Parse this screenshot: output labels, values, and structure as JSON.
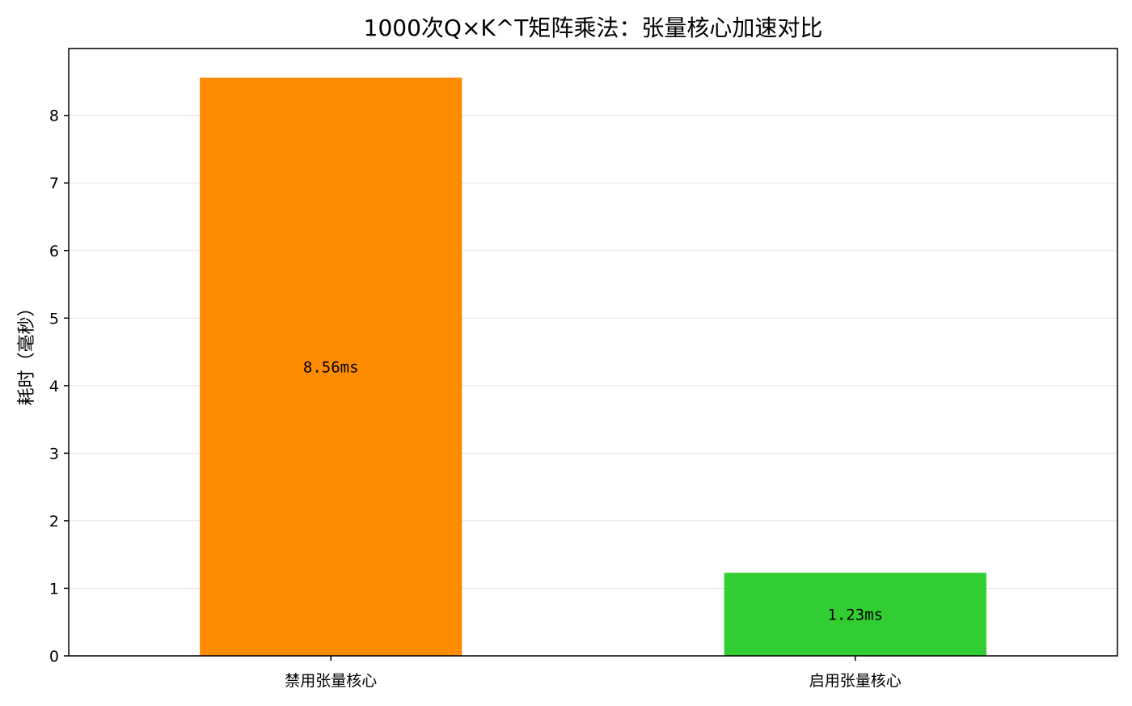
{
  "chart_data": {
    "type": "bar",
    "title": "1000次Q×K^T矩阵乘法：张量核心加速对比",
    "xlabel": "",
    "ylabel": "耗时（毫秒）",
    "categories": [
      "禁用张量核心",
      "启用张量核心"
    ],
    "values": [
      8.56,
      1.23
    ],
    "data_labels": [
      "8.56ms",
      "1.23ms"
    ],
    "colors": [
      "#ff8c00",
      "#32cd32"
    ],
    "ylim": [
      0,
      8.99
    ],
    "yticks": [
      0,
      1,
      2,
      3,
      4,
      5,
      6,
      7,
      8
    ],
    "grid": "horizontal"
  }
}
